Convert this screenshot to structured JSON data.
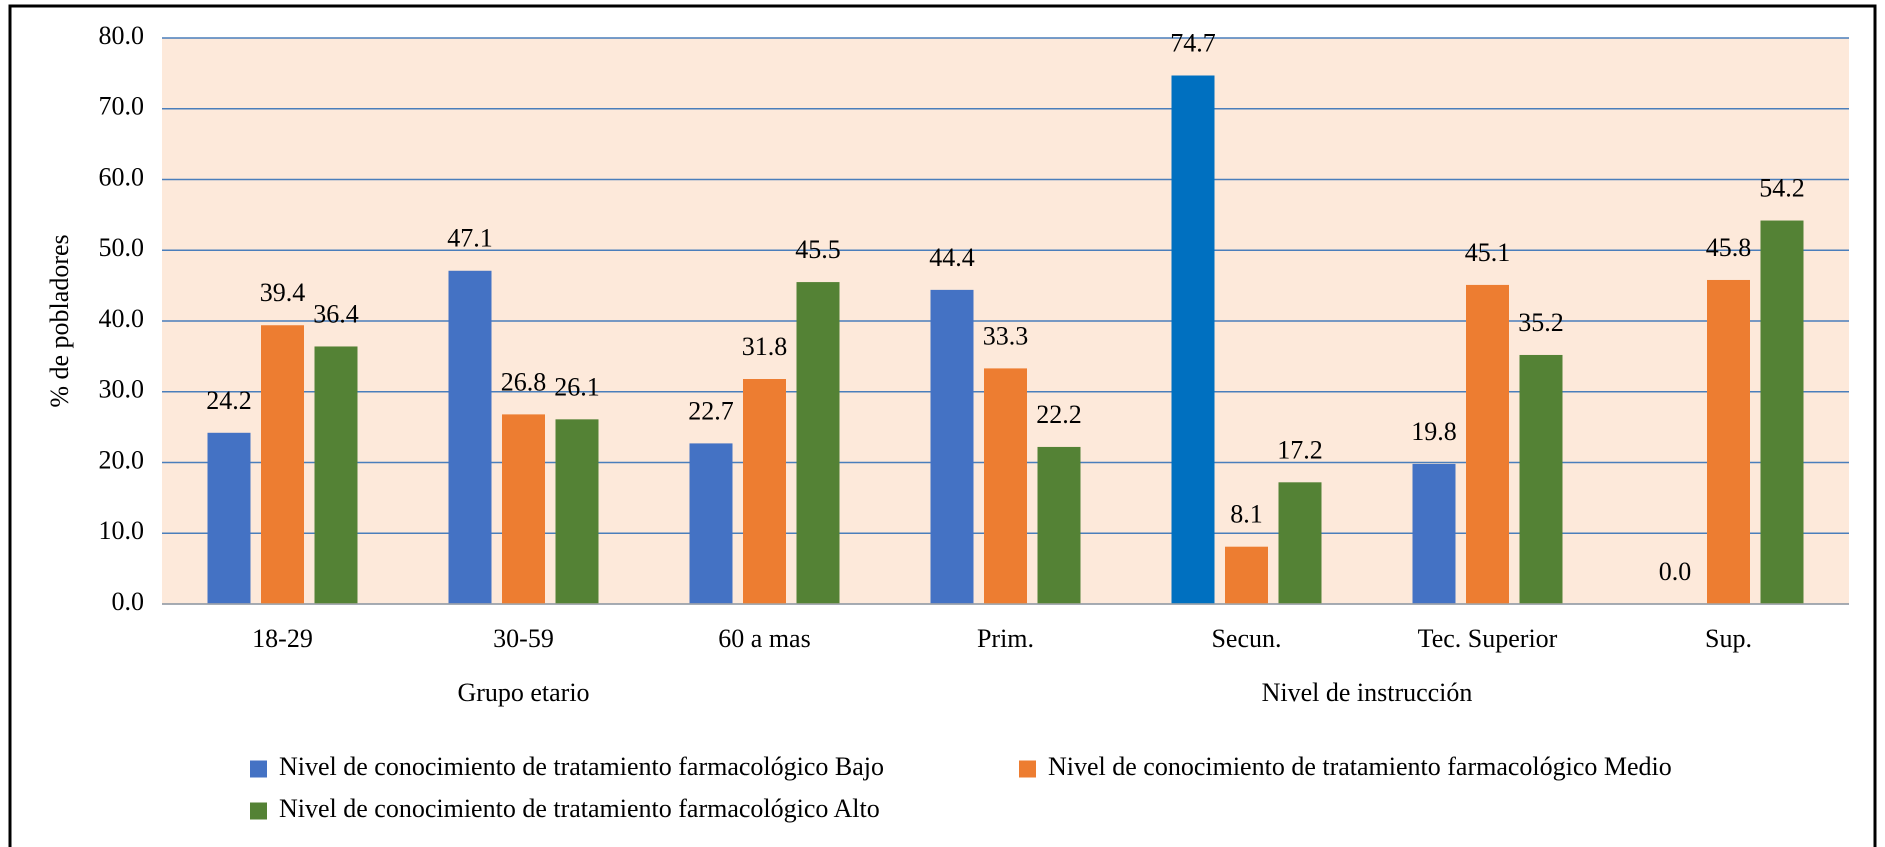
{
  "chart_data": {
    "type": "bar",
    "y_label": "% de pobladores",
    "categories": [
      "18-29",
      "30-59",
      "60 a mas",
      "Prim.",
      "Secun.",
      "Tec. Superior",
      "Sup."
    ],
    "groups": [
      {
        "name": "Grupo etario",
        "count": 3
      },
      {
        "name": "Nivel de instrucción",
        "count": 4
      }
    ],
    "series": [
      {
        "name": "Nivel de conocimiento de tratamiento farmacológico Bajo",
        "color": "#4472c4",
        "colors": [
          "#4472c4",
          "#4472c4",
          "#4472c4",
          "#4472c4",
          "#0070c0",
          "#4472c4",
          "#4472c4"
        ],
        "values": [
          24.2,
          47.1,
          22.7,
          44.4,
          74.7,
          19.8,
          0
        ],
        "value_labels": [
          "24.2",
          "47.1",
          "22.7",
          "44.4",
          "74.7",
          "19.8",
          "0.0"
        ]
      },
      {
        "name": "Nivel de conocimiento de tratamiento farmacológico Medio",
        "color": "#ed7d31",
        "values": [
          39.4,
          26.8,
          31.8,
          33.3,
          8.1,
          45.1,
          45.8
        ],
        "value_labels": [
          "39.4",
          "26.8",
          "31.8",
          "33.3",
          "8.1",
          "45.1",
          "45.8"
        ]
      },
      {
        "name": "Nivel de conocimiento de tratamiento farmacológico Alto",
        "color": "#548235",
        "values": [
          36.4,
          26.1,
          45.5,
          22.2,
          17.2,
          35.2,
          54.2
        ],
        "value_labels": [
          "36.4",
          "26.1",
          "45.5",
          "22.2",
          "17.2",
          "35.2",
          "54.2"
        ]
      }
    ],
    "ylim": [
      0,
      80
    ],
    "yticks": [
      {
        "value": 0,
        "label": "0.0"
      },
      {
        "value": 10,
        "label": "10.0"
      },
      {
        "value": 20,
        "label": "20.0"
      },
      {
        "value": 30,
        "label": "30.0"
      },
      {
        "value": 40,
        "label": "40.0"
      },
      {
        "value": 50,
        "label": "50.0"
      },
      {
        "value": 60,
        "label": "60.0"
      },
      {
        "value": 70,
        "label": "70.0"
      },
      {
        "value": 80,
        "label": "80.0"
      }
    ],
    "grid": true,
    "grid_color": "#4a7ebb",
    "plot_background": "#fde9da",
    "legend": "bottom"
  }
}
